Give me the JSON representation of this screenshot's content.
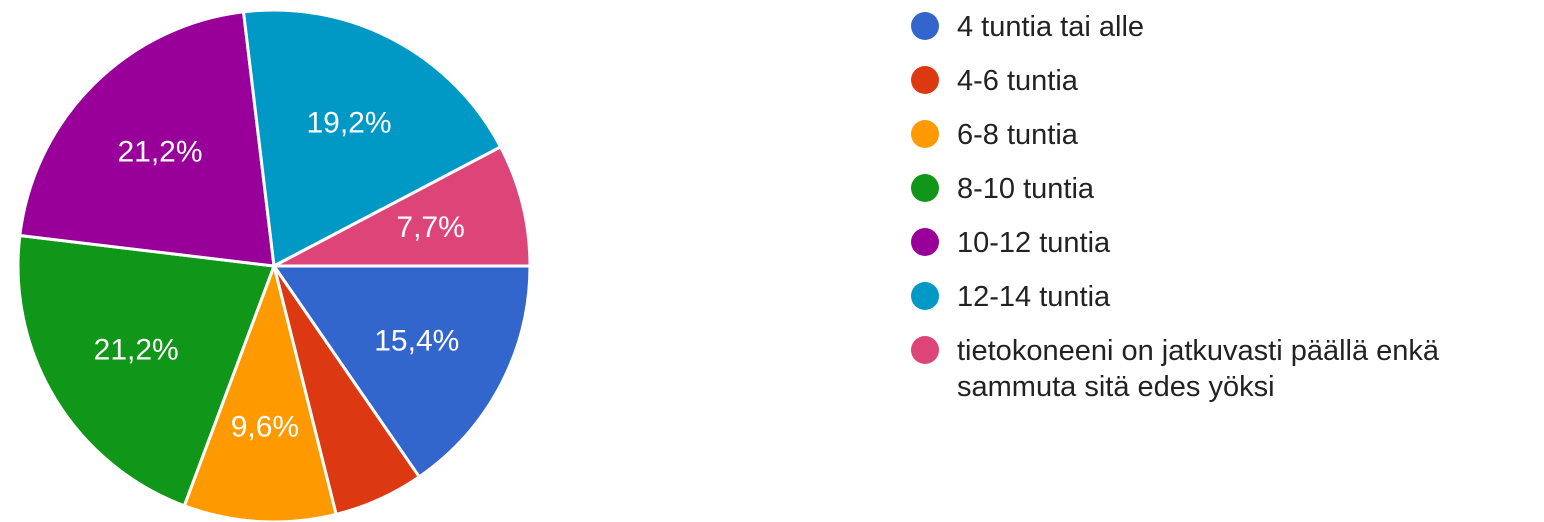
{
  "chart_data": {
    "type": "pie",
    "start": "right, clockwise",
    "slices": [
      {
        "label": "4 tuntia tai alle",
        "value": 15.4,
        "display": "15,4%",
        "color": "#3366cc"
      },
      {
        "label": "4-6 tuntia",
        "value": 5.7,
        "display": "",
        "color": "#dc3912"
      },
      {
        "label": "6-8 tuntia",
        "value": 9.6,
        "display": "9,6%",
        "color": "#ff9900"
      },
      {
        "label": "8-10 tuntia",
        "value": 21.2,
        "display": "21,2%",
        "color": "#109618"
      },
      {
        "label": "10-12 tuntia",
        "value": 21.2,
        "display": "21,2%",
        "color": "#990099"
      },
      {
        "label": "12-14 tuntia",
        "value": 19.2,
        "display": "19,2%",
        "color": "#0099c6"
      },
      {
        "label": "tietokoneeni on jatkuvasti päällä enkä sammuta sitä edes yöksi",
        "value": 7.7,
        "display": "7,7%",
        "color": "#dd4477"
      }
    ],
    "legend": {
      "placement": "right",
      "entries": [
        [
          "4 tuntia tai alle"
        ],
        [
          "4-6 tuntia"
        ],
        [
          "6-8 tuntia"
        ],
        [
          "8-10 tuntia"
        ],
        [
          "10-12 tuntia"
        ],
        [
          "12-14 tuntia"
        ],
        [
          "tietokoneeni on jatkuvasti päällä enkä",
          "sammuta sitä edes yöksi"
        ]
      ]
    }
  }
}
